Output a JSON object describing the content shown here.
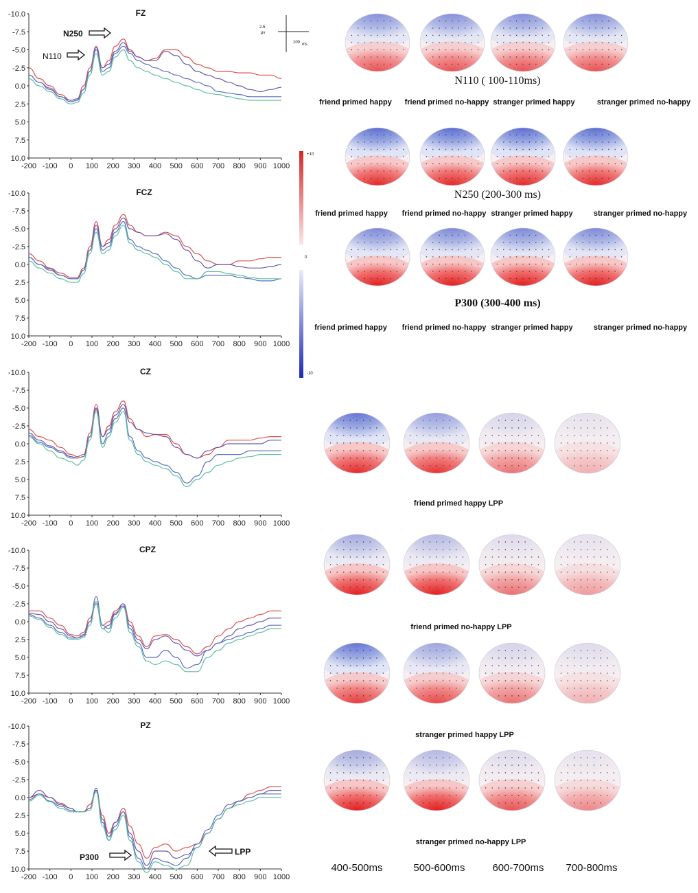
{
  "figure": {
    "scale_bar": {
      "amplitude_label": "2.5",
      "amplitude_unit": "μv",
      "time_label": "100",
      "time_unit": "ms"
    },
    "color_scale": {
      "max_label": "+10",
      "zero_label": "0",
      "min_label": "-10"
    },
    "topo_titles": {
      "n110": "N110 ( 100-110ms)",
      "n250": "N250 (200-300 ms)",
      "p300": "P300 (300-400 ms)"
    },
    "conditions": [
      "friend primed happy",
      "friend primed no-happy",
      "stranger primed happy",
      "stranger  primed no-happy"
    ],
    "lpp_labels": [
      "friend primed happy   LPP",
      "friend primed no-happy LPP",
      "stranger primed happy  LPP",
      "stranger primed  no-happy  LPP"
    ],
    "time_windows": [
      "400-500ms",
      "500-600ms",
      "600-700ms",
      "700-800ms"
    ],
    "annotations": {
      "n250": "N250",
      "n110": "N110",
      "p300": "P300",
      "lpp": "LPP"
    }
  },
  "chart_data": [
    {
      "type": "line",
      "title": "FZ",
      "x": [
        -200,
        -150,
        -100,
        -50,
        0,
        30,
        60,
        90,
        120,
        150,
        180,
        210,
        250,
        280,
        320,
        360,
        400,
        450,
        500,
        550,
        600,
        650,
        700,
        750,
        800,
        850,
        900,
        950,
        1000
      ],
      "xticks": [
        -200,
        -100,
        0,
        100,
        200,
        300,
        400,
        500,
        600,
        700,
        800,
        900,
        1000
      ],
      "yticks": [
        -10,
        -7.5,
        -5,
        -2.5,
        0,
        2.5,
        5,
        7.5,
        10
      ],
      "ytick_labels": [
        "-10.0",
        "-7.5",
        "-5.0",
        "-2.5",
        "0.0",
        "2.5",
        "5.0",
        "7.5",
        "10.0"
      ],
      "xlim": [
        -200,
        1000
      ],
      "ylim": [
        -10,
        10
      ],
      "y_inverted": true,
      "series": [
        {
          "name": "red",
          "color": "#d9534f",
          "values": [
            -2.5,
            -1,
            0,
            1.2,
            2,
            1.8,
            0,
            -2.5,
            -5.5,
            -2.5,
            -3.5,
            -5.5,
            -6.5,
            -5,
            -4,
            -3.5,
            -3.8,
            -5,
            -5,
            -4,
            -3,
            -2.5,
            -2,
            -2,
            -1.8,
            -1.8,
            -1.5,
            -1.5,
            -1
          ]
        },
        {
          "name": "purple",
          "color": "#6a5aa8",
          "values": [
            -1.5,
            -0.5,
            0.5,
            1.5,
            2.2,
            2,
            0.5,
            -2,
            -5.3,
            -2.5,
            -3,
            -4.8,
            -6,
            -4.8,
            -4,
            -3.5,
            -3.5,
            -4.8,
            -4.2,
            -3,
            -2,
            -1.5,
            -1,
            -0.5,
            0,
            0.5,
            0.8,
            0.5,
            0.2
          ]
        },
        {
          "name": "blue",
          "color": "#5b6fc2",
          "values": [
            -1.5,
            -0.5,
            0.3,
            1.5,
            2,
            1.8,
            0.5,
            -2,
            -5,
            -2,
            -2.5,
            -4.5,
            -5.5,
            -4.5,
            -3.5,
            -3,
            -2.5,
            -2,
            -1.5,
            -1,
            -0.5,
            0,
            0.8,
            1,
            1.2,
            1.5,
            1.5,
            1.5,
            1.5
          ]
        },
        {
          "name": "green",
          "color": "#5fbf9f",
          "values": [
            -1,
            0,
            0.8,
            1.8,
            2.5,
            2.3,
            1,
            -1.5,
            -4.5,
            -1.5,
            -2,
            -4,
            -5,
            -3.5,
            -2.5,
            -2,
            -1.5,
            -1,
            -0.5,
            0,
            0.5,
            1,
            1.2,
            1.5,
            1.8,
            2,
            2,
            2,
            2
          ]
        }
      ]
    },
    {
      "type": "line",
      "title": "FCZ",
      "x": [
        -200,
        -150,
        -100,
        -50,
        0,
        30,
        60,
        90,
        120,
        150,
        180,
        210,
        250,
        280,
        320,
        360,
        400,
        450,
        500,
        550,
        600,
        650,
        700,
        750,
        800,
        850,
        900,
        950,
        1000
      ],
      "xticks": [
        -200,
        -100,
        0,
        100,
        200,
        300,
        400,
        500,
        600,
        700,
        800,
        900,
        1000
      ],
      "yticks": [
        -10,
        -7.5,
        -5,
        -2.5,
        0,
        2.5,
        5,
        7.5,
        10
      ],
      "ytick_labels": [
        "-10.0",
        "-7.5",
        "-5.0",
        "-2.5",
        "0.0",
        "2.5",
        "5.0",
        "7.5",
        "10.0"
      ],
      "xlim": [
        -200,
        1000
      ],
      "ylim": [
        -10,
        10
      ],
      "y_inverted": true,
      "series": [
        {
          "name": "red",
          "color": "#d9534f",
          "values": [
            -1.5,
            -0.5,
            0.5,
            1.2,
            1.8,
            1.8,
            0.5,
            -2.5,
            -6,
            -2.5,
            -3.5,
            -5.5,
            -7,
            -5.5,
            -4.5,
            -4,
            -4,
            -4.5,
            -4,
            -2.5,
            -1.5,
            -0.5,
            0,
            0,
            -0.5,
            -0.5,
            -0.8,
            -1,
            -1
          ]
        },
        {
          "name": "purple",
          "color": "#6a5aa8",
          "values": [
            -1,
            0,
            0.8,
            1.5,
            2,
            2,
            0.8,
            -2,
            -5.5,
            -2.5,
            -3,
            -5,
            -6.5,
            -5,
            -4.5,
            -4,
            -4,
            -4.3,
            -3.5,
            -2,
            -0.5,
            0.5,
            0,
            0,
            0.3,
            0.5,
            0.5,
            0.3,
            0
          ]
        },
        {
          "name": "blue",
          "color": "#5b6fc2",
          "values": [
            -1,
            0,
            0.6,
            1.5,
            2,
            2,
            0.8,
            -2,
            -5,
            -2,
            -2.5,
            -4.5,
            -6,
            -3.5,
            -2.5,
            -2,
            -1.5,
            -0.5,
            0.5,
            1.5,
            2,
            1.5,
            1.5,
            1.5,
            1.8,
            2,
            2.3,
            2.3,
            2
          ]
        },
        {
          "name": "green",
          "color": "#5fbf9f",
          "values": [
            -0.5,
            0.5,
            1.2,
            2,
            2.5,
            2.5,
            1.3,
            -1.5,
            -4.5,
            -1.5,
            -2,
            -4,
            -5.5,
            -3,
            -2,
            -1.5,
            -1,
            0,
            1,
            2,
            2,
            1,
            1,
            1.3,
            1.5,
            1.8,
            2,
            2,
            2
          ]
        }
      ]
    },
    {
      "type": "line",
      "title": "CZ",
      "x": [
        -200,
        -150,
        -100,
        -50,
        0,
        30,
        60,
        90,
        120,
        150,
        180,
        210,
        250,
        280,
        320,
        360,
        400,
        450,
        500,
        550,
        600,
        650,
        700,
        750,
        800,
        850,
        900,
        950,
        1000
      ],
      "xticks": [
        -200,
        -100,
        0,
        100,
        200,
        300,
        400,
        500,
        600,
        700,
        800,
        900,
        1000
      ],
      "yticks": [
        -10,
        -7.5,
        -5,
        -2.5,
        0,
        2.5,
        5,
        7.5,
        10
      ],
      "ytick_labels": [
        "-10.0",
        "-7.5",
        "-5.0",
        "-2.5",
        "0.0",
        "2.5",
        "5.0",
        "7.5",
        "10.0"
      ],
      "xlim": [
        -200,
        1000
      ],
      "ylim": [
        -10,
        10
      ],
      "y_inverted": true,
      "series": [
        {
          "name": "red",
          "color": "#d9534f",
          "values": [
            -2,
            -1,
            -0.5,
            0.5,
            1.5,
            1.8,
            1.5,
            -1.5,
            -5.5,
            -1,
            -2.5,
            -4.5,
            -6,
            -3.5,
            -2,
            -1,
            -1.3,
            -1.3,
            0,
            1.5,
            2,
            1.5,
            0.5,
            -0.5,
            -0.5,
            -0.5,
            -0.8,
            -1,
            -1
          ]
        },
        {
          "name": "purple",
          "color": "#6a5aa8",
          "values": [
            -1.5,
            -0.5,
            0.3,
            1,
            1.8,
            2,
            1.8,
            -1,
            -5,
            -1,
            -2,
            -4,
            -5.5,
            -3,
            -2,
            -1.5,
            -1.3,
            -1,
            0.5,
            1.5,
            2,
            1,
            0.5,
            0,
            0,
            0,
            0,
            -0.5,
            -0.5
          ]
        },
        {
          "name": "blue",
          "color": "#5b6fc2",
          "values": [
            -1.2,
            -0.2,
            0.5,
            1.2,
            2,
            2,
            1.8,
            -1,
            -4.8,
            0,
            -1.5,
            -3.5,
            -5,
            -1,
            1,
            2,
            2.5,
            3,
            4,
            5.5,
            4.5,
            2.5,
            1.5,
            1.5,
            1.5,
            1,
            1,
            1,
            1
          ]
        },
        {
          "name": "green",
          "color": "#5fbf9f",
          "values": [
            -1,
            0,
            1,
            2,
            2.5,
            3,
            2.3,
            -0.5,
            -4.5,
            0.5,
            -1,
            -3,
            -4.5,
            -0.5,
            1.5,
            2.5,
            3,
            3.5,
            4.5,
            6,
            5,
            4,
            3,
            2.5,
            2,
            1.8,
            1.5,
            1.5,
            1.5
          ]
        }
      ]
    },
    {
      "type": "line",
      "title": "CPZ",
      "x": [
        -200,
        -150,
        -100,
        -50,
        0,
        30,
        60,
        90,
        120,
        150,
        180,
        210,
        250,
        280,
        320,
        360,
        400,
        450,
        500,
        550,
        600,
        650,
        700,
        750,
        800,
        850,
        900,
        950,
        1000
      ],
      "xticks": [
        -200,
        -100,
        0,
        100,
        200,
        300,
        400,
        500,
        600,
        700,
        800,
        900,
        1000
      ],
      "yticks": [
        -10,
        -7.5,
        -5,
        -2.5,
        0,
        2.5,
        5,
        7.5,
        10
      ],
      "ytick_labels": [
        "-10.0",
        "-7.5",
        "-5.0",
        "-2.5",
        "0.0",
        "2.5",
        "5.0",
        "7.5",
        "10.0"
      ],
      "xlim": [
        -200,
        1000
      ],
      "ylim": [
        -10,
        10
      ],
      "y_inverted": true,
      "series": [
        {
          "name": "red",
          "color": "#d9534f",
          "values": [
            -1.5,
            -1.5,
            -0.5,
            0.5,
            1.8,
            2,
            1.5,
            -0.5,
            -2.8,
            0.5,
            0,
            -1.5,
            -2.5,
            0,
            2,
            3.5,
            2,
            1.8,
            2.5,
            3.5,
            4.5,
            3.5,
            2,
            1,
            0,
            -0.5,
            -1,
            -1.5,
            -1.5
          ]
        },
        {
          "name": "purple",
          "color": "#6a5aa8",
          "values": [
            -1.2,
            -1,
            0,
            1,
            2,
            2.3,
            1.8,
            0,
            -2.5,
            1,
            0.5,
            -1.2,
            -2.2,
            0.5,
            2.5,
            3.8,
            2.5,
            2,
            3,
            4,
            4.8,
            4,
            3,
            2,
            1,
            0.5,
            0,
            -0.5,
            -0.5
          ]
        },
        {
          "name": "blue",
          "color": "#5b6fc2",
          "values": [
            -1,
            -0.5,
            0.5,
            1.5,
            2.3,
            2.3,
            2,
            0,
            -3.5,
            0.5,
            1,
            -1,
            -2.5,
            1,
            3,
            5,
            5,
            4,
            5,
            6.5,
            6,
            4,
            3,
            2.5,
            2,
            1.5,
            1,
            0.5,
            0.5
          ]
        },
        {
          "name": "green",
          "color": "#5fbf9f",
          "values": [
            -0.8,
            -0.3,
            0.8,
            1.8,
            2.5,
            2.5,
            2.2,
            0.5,
            -2.8,
            1,
            1.5,
            -0.5,
            -2,
            1.5,
            3.5,
            5.5,
            6,
            5.5,
            6,
            7,
            7,
            5,
            4,
            3,
            2.5,
            2,
            1.5,
            1,
            1
          ]
        }
      ]
    },
    {
      "type": "line",
      "title": "PZ",
      "x": [
        -200,
        -150,
        -100,
        -50,
        0,
        30,
        60,
        90,
        120,
        150,
        180,
        210,
        250,
        280,
        320,
        360,
        400,
        450,
        500,
        550,
        600,
        650,
        700,
        750,
        800,
        850,
        900,
        950,
        1000
      ],
      "xticks": [
        -200,
        -100,
        0,
        100,
        200,
        300,
        400,
        500,
        600,
        700,
        800,
        900,
        1000
      ],
      "yticks": [
        -10,
        -7.5,
        -5,
        -2.5,
        0,
        2.5,
        5,
        7.5,
        10
      ],
      "ytick_labels": [
        "-10.0",
        "-7.5",
        "-5.0",
        "-2.5",
        "0.0",
        "2.5",
        "5.0",
        "7.5",
        "10.0"
      ],
      "xlim": [
        -200,
        1000
      ],
      "ylim": [
        -10,
        10
      ],
      "y_inverted": true,
      "series": [
        {
          "name": "red",
          "color": "#d9534f",
          "values": [
            0,
            -0.5,
            0,
            0.8,
            1.5,
            2,
            2,
            1,
            -1,
            2.5,
            5,
            3.5,
            1.5,
            4,
            6.5,
            8.5,
            7,
            6.5,
            7.5,
            7,
            6.5,
            5,
            3,
            1.5,
            0.5,
            -0.5,
            -1,
            -1.5,
            -1.5
          ]
        },
        {
          "name": "purple",
          "color": "#6a5aa8",
          "values": [
            0,
            -1,
            0,
            1,
            1.5,
            2,
            2,
            1.5,
            -1,
            3,
            5.5,
            3.5,
            2,
            5,
            7.5,
            9.5,
            7.5,
            7.5,
            8.5,
            8,
            7,
            5,
            3,
            1.5,
            0.5,
            0,
            -0.5,
            -1,
            -1
          ]
        },
        {
          "name": "blue",
          "color": "#5b6fc2",
          "values": [
            0.3,
            -0.5,
            0.5,
            1.2,
            1.8,
            2,
            2,
            1.5,
            -1.3,
            3.5,
            6,
            4,
            2,
            5.5,
            8.5,
            10,
            8.5,
            9,
            9.5,
            8.5,
            6.5,
            4.5,
            2.5,
            1,
            0.5,
            0,
            -0.5,
            -0.5,
            -0.5
          ]
        },
        {
          "name": "green",
          "color": "#5fbf9f",
          "values": [
            0.5,
            -0.3,
            0.6,
            1.5,
            2,
            2,
            2,
            1.8,
            -0.8,
            4,
            6,
            4.5,
            2.5,
            6,
            9,
            10.5,
            9,
            9.5,
            10,
            9.5,
            7,
            5,
            3,
            1.5,
            1,
            0.5,
            0,
            0,
            0
          ]
        }
      ]
    }
  ]
}
